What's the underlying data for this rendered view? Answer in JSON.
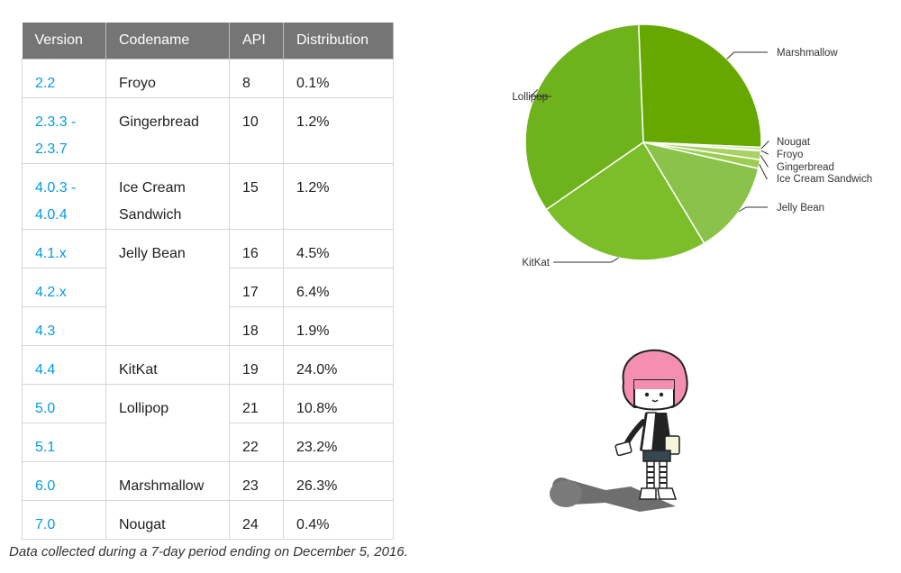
{
  "table": {
    "headers": [
      "Version",
      "Codename",
      "API",
      "Distribution"
    ],
    "rows": [
      {
        "version": "2.2",
        "codename": "Froyo",
        "api": "8",
        "distribution": "0.1%"
      },
      {
        "version": "2.3.3 -\n2.3.7",
        "codename": "Gingerbread",
        "api": "10",
        "distribution": "1.2%"
      },
      {
        "version": "4.0.3 -\n4.0.4",
        "codename": "Ice Cream\nSandwich",
        "api": "15",
        "distribution": "1.2%"
      },
      {
        "version": "4.1.x",
        "codename": "Jelly Bean",
        "api": "16",
        "distribution": "4.5%"
      },
      {
        "version": "4.2.x",
        "api": "17",
        "distribution": "6.4%"
      },
      {
        "version": "4.3",
        "api": "18",
        "distribution": "1.9%"
      },
      {
        "version": "4.4",
        "codename": "KitKat",
        "api": "19",
        "distribution": "24.0%"
      },
      {
        "version": "5.0",
        "codename": "Lollipop",
        "api": "21",
        "distribution": "10.8%"
      },
      {
        "version": "5.1",
        "api": "22",
        "distribution": "23.2%"
      },
      {
        "version": "6.0",
        "codename": "Marshmallow",
        "api": "23",
        "distribution": "26.3%"
      },
      {
        "version": "7.0",
        "codename": "Nougat",
        "api": "24",
        "distribution": "0.4%"
      }
    ]
  },
  "footnote": "Data collected during a 7-day period ending on December 5, 2016.",
  "chart_data": {
    "type": "pie",
    "title": "",
    "categories": [
      "Marshmallow",
      "Nougat",
      "Froyo",
      "Gingerbread",
      "Ice Cream Sandwich",
      "Jelly Bean",
      "KitKat",
      "Lollipop"
    ],
    "values": [
      26.3,
      0.4,
      0.1,
      1.2,
      1.2,
      12.8,
      24.0,
      34.0
    ],
    "colors": [
      "#66a800",
      "#c0de8e",
      "#b4d87a",
      "#a8d266",
      "#9ccc52",
      "#8bc34a",
      "#7cbd2a",
      "#6fb31c"
    ],
    "legend": "callout labels"
  },
  "colors": {
    "header_bg": "#757575",
    "header_text": "#ffffff",
    "version_link": "#039be5",
    "border": "#d6d6d6"
  }
}
